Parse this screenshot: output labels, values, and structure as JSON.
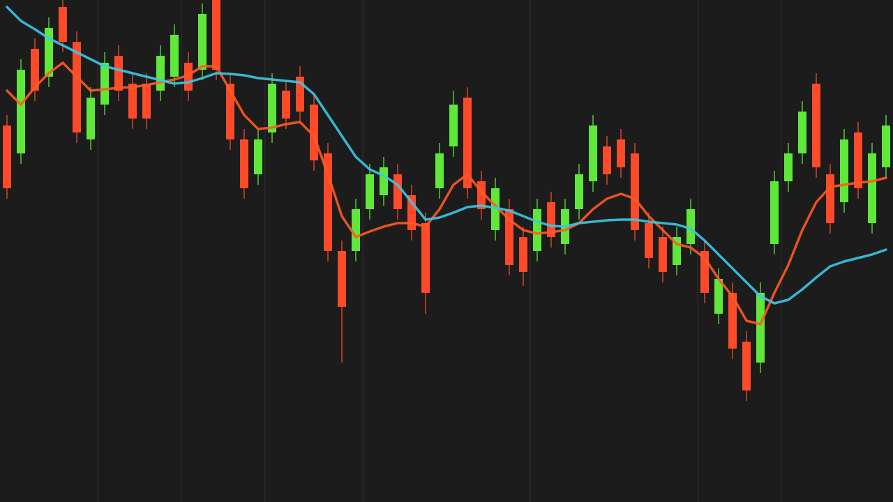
{
  "chart_data": {
    "type": "candlestick",
    "ylim": [
      0,
      720
    ],
    "up_color": "#5fe83a",
    "down_color": "#ff4a2a",
    "open": [
      540,
      500,
      650,
      610,
      710,
      660,
      520,
      570,
      640,
      600,
      600,
      590,
      610,
      630,
      620,
      720,
      600,
      520,
      470,
      530,
      590,
      610,
      570,
      500,
      360,
      360,
      420,
      440,
      470,
      440,
      400,
      450,
      510,
      580,
      460,
      390,
      420,
      380,
      360,
      430,
      370,
      420,
      460,
      510,
      520,
      500,
      400,
      380,
      340,
      370,
      360,
      270,
      300,
      230,
      200,
      370,
      460,
      500,
      600,
      470,
      430,
      530,
      400,
      480
    ],
    "high": [
      555,
      635,
      665,
      695,
      720,
      675,
      595,
      645,
      655,
      615,
      615,
      655,
      685,
      645,
      715,
      720,
      615,
      535,
      535,
      615,
      605,
      625,
      585,
      515,
      375,
      435,
      485,
      495,
      485,
      455,
      415,
      515,
      590,
      595,
      475,
      465,
      435,
      395,
      435,
      445,
      435,
      485,
      555,
      525,
      535,
      515,
      415,
      395,
      395,
      435,
      375,
      335,
      315,
      245,
      315,
      475,
      515,
      575,
      615,
      485,
      535,
      545,
      515,
      555
    ],
    "low": [
      435,
      485,
      575,
      595,
      645,
      515,
      505,
      555,
      575,
      535,
      535,
      575,
      595,
      575,
      605,
      605,
      505,
      435,
      455,
      515,
      535,
      545,
      475,
      345,
      200,
      345,
      405,
      425,
      405,
      375,
      270,
      435,
      495,
      435,
      405,
      375,
      325,
      310,
      345,
      365,
      355,
      405,
      445,
      455,
      465,
      375,
      335,
      315,
      325,
      355,
      285,
      255,
      205,
      145,
      185,
      355,
      445,
      485,
      465,
      385,
      415,
      435,
      385,
      465
    ],
    "close": [
      450,
      620,
      590,
      680,
      660,
      530,
      580,
      630,
      590,
      550,
      550,
      640,
      670,
      590,
      700,
      620,
      520,
      450,
      520,
      600,
      550,
      560,
      490,
      360,
      280,
      420,
      470,
      480,
      420,
      390,
      300,
      500,
      570,
      450,
      420,
      450,
      340,
      330,
      420,
      380,
      420,
      470,
      540,
      470,
      480,
      390,
      350,
      330,
      380,
      420,
      300,
      320,
      220,
      160,
      300,
      460,
      500,
      560,
      480,
      400,
      520,
      450,
      500,
      540
    ],
    "lines": [
      {
        "color": "#ff5a22",
        "values": [
          590,
          570,
          595,
          615,
          630,
          610,
          590,
          592,
          594,
          595,
          598,
          602,
          606,
          612,
          625,
          625,
          590,
          555,
          535,
          537,
          542,
          545,
          525,
          470,
          410,
          380,
          388,
          395,
          400,
          400,
          395,
          420,
          455,
          470,
          445,
          425,
          405,
          390,
          385,
          387,
          390,
          400,
          420,
          435,
          442,
          435,
          410,
          390,
          370,
          365,
          350,
          320,
          295,
          260,
          255,
          300,
          340,
          390,
          430,
          452,
          455,
          458,
          460,
          465
        ]
      },
      {
        "color": "#3cc8e6",
        "values": [
          710,
          690,
          678,
          665,
          655,
          645,
          635,
          625,
          620,
          615,
          610,
          605,
          600,
          602,
          608,
          615,
          614,
          612,
          608,
          606,
          604,
          602,
          585,
          555,
          525,
          495,
          477,
          468,
          455,
          430,
          405,
          408,
          415,
          423,
          425,
          422,
          418,
          410,
          402,
          396,
          395,
          400,
          402,
          404,
          405,
          405,
          402,
          400,
          398,
          392,
          375,
          355,
          335,
          315,
          295,
          285,
          290,
          305,
          322,
          338,
          345,
          350,
          355,
          362
        ]
      }
    ]
  }
}
